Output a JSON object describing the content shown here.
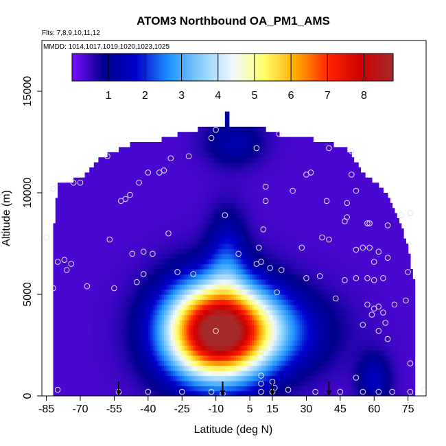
{
  "chart_data": {
    "type": "heatmap",
    "title": "ATOM3 Northbound OA_PM1_AMS",
    "flights_note": "Flts: 7,8,9,10,11,12",
    "dates_note": "MMDD: 1014,1017,1019,1020,1023,1025",
    "xlabel": "Latitude (deg N)",
    "ylabel": "Altitude (m)",
    "xlim": [
      -87,
      83
    ],
    "ylim": [
      0,
      17500
    ],
    "x_ticks": [
      -85,
      -70,
      -55,
      -40,
      -25,
      -10,
      5,
      15,
      30,
      45,
      60,
      75
    ],
    "y_ticks": [
      0,
      5000,
      10000,
      15000
    ],
    "colorbar": {
      "range": [
        0,
        8.8
      ],
      "ticks": [
        1,
        2,
        3,
        4,
        5,
        6,
        7,
        8
      ],
      "colors": [
        "#7a0dff",
        "#00008b",
        "#0000cd",
        "#1e90ff",
        "#87cefa",
        "#f0f8ff",
        "#ffff66",
        "#ffa500",
        "#ff2200",
        "#cc0000",
        "#a52a2a"
      ]
    },
    "envelope": [
      {
        "lat": -82,
        "top": 8000
      },
      {
        "lat": -80,
        "top": 10400
      },
      {
        "lat": -70,
        "top": 10700
      },
      {
        "lat": -60,
        "top": 11800
      },
      {
        "lat": -45,
        "top": 12500
      },
      {
        "lat": -35,
        "top": 12600
      },
      {
        "lat": -23,
        "top": 13000
      },
      {
        "lat": -12,
        "top": 13300
      },
      {
        "lat": 0,
        "top": 13300
      },
      {
        "lat": 10,
        "top": 13200
      },
      {
        "lat": 20,
        "top": 12800
      },
      {
        "lat": 35,
        "top": 12600
      },
      {
        "lat": 48,
        "top": 12200
      },
      {
        "lat": 55,
        "top": 11000
      },
      {
        "lat": 63,
        "top": 10300
      },
      {
        "lat": 67,
        "top": 9700
      },
      {
        "lat": 71,
        "top": 8700
      },
      {
        "lat": 75,
        "top": 7200
      },
      {
        "lat": 78,
        "top": 5400
      }
    ],
    "spike": {
      "lat_min": -6,
      "lat_max": -4,
      "top": 13800
    },
    "features": [
      {
        "lat": -10,
        "alt": 3200,
        "sigma_lat": 16,
        "sigma_alt": 1700,
        "value": 8.1
      },
      {
        "lat": 10,
        "alt": 3200,
        "sigma_lat": 20,
        "sigma_alt": 1400,
        "value": 2.0
      },
      {
        "lat": -5,
        "alt": 7000,
        "sigma_lat": 6,
        "sigma_alt": 1500,
        "value": 1.3
      },
      {
        "lat": 60,
        "alt": 800,
        "sigma_lat": 5,
        "sigma_alt": 900,
        "value": 1.2
      },
      {
        "lat": -2,
        "alt": 12500,
        "sigma_lat": 9,
        "sigma_alt": 800,
        "value": 1.0
      }
    ],
    "points": [
      {
        "lat": -10,
        "alt": 13100
      },
      {
        "lat": -12,
        "alt": 12700
      },
      {
        "lat": 8,
        "alt": 12200
      },
      {
        "lat": 18,
        "alt": 12900
      },
      {
        "lat": 40,
        "alt": 12200
      },
      {
        "lat": 50,
        "alt": 12050
      },
      {
        "lat": -58,
        "alt": 11800
      },
      {
        "lat": -30,
        "alt": 11700
      },
      {
        "lat": -22,
        "alt": 11800
      },
      {
        "lat": -40,
        "alt": 11000
      },
      {
        "lat": -35,
        "alt": 11000
      },
      {
        "lat": -33,
        "alt": 11100
      },
      {
        "lat": -70,
        "alt": 10500
      },
      {
        "lat": -73,
        "alt": 10500
      },
      {
        "lat": -82,
        "alt": 10200
      },
      {
        "lat": -44,
        "alt": 10500
      },
      {
        "lat": -48,
        "alt": 9900
      },
      {
        "lat": -50,
        "alt": 9700
      },
      {
        "lat": -52,
        "alt": 9600
      },
      {
        "lat": 12,
        "alt": 10300
      },
      {
        "lat": 12,
        "alt": 9600
      },
      {
        "lat": 30,
        "alt": 10900
      },
      {
        "lat": 32,
        "alt": 11000
      },
      {
        "lat": 50,
        "alt": 10900
      },
      {
        "lat": 24,
        "alt": 10100
      },
      {
        "lat": 39,
        "alt": 9600
      },
      {
        "lat": 48,
        "alt": 9500
      },
      {
        "lat": 52,
        "alt": 10100
      },
      {
        "lat": -6,
        "alt": 8900
      },
      {
        "lat": 48,
        "alt": 8800
      },
      {
        "lat": 47,
        "alt": 8600
      },
      {
        "lat": 57,
        "alt": 8500
      },
      {
        "lat": 58,
        "alt": 8500
      },
      {
        "lat": 66,
        "alt": 8400
      },
      {
        "lat": 72,
        "alt": 8900
      },
      {
        "lat": 76,
        "alt": 9000
      },
      {
        "lat": 11,
        "alt": 8200
      },
      {
        "lat": -85,
        "alt": 7800
      },
      {
        "lat": -57,
        "alt": 7700
      },
      {
        "lat": -31,
        "alt": 8000
      },
      {
        "lat": 37,
        "alt": 7800
      },
      {
        "lat": 40,
        "alt": 7700
      },
      {
        "lat": 9,
        "alt": 7300
      },
      {
        "lat": 28,
        "alt": 7300
      },
      {
        "lat": 52,
        "alt": 7200
      },
      {
        "lat": 55,
        "alt": 7300
      },
      {
        "lat": 58,
        "alt": 7300
      },
      {
        "lat": 62,
        "alt": 7100
      },
      {
        "lat": -47,
        "alt": 7000
      },
      {
        "lat": -42,
        "alt": 7100
      },
      {
        "lat": -38,
        "alt": 7000
      },
      {
        "lat": 0,
        "alt": 7000
      },
      {
        "lat": -77,
        "alt": 6700
      },
      {
        "lat": -80,
        "alt": 6600
      },
      {
        "lat": -76,
        "alt": 6200
      },
      {
        "lat": -74,
        "alt": 6500
      },
      {
        "lat": 8,
        "alt": 6500
      },
      {
        "lat": 10,
        "alt": 6600
      },
      {
        "lat": 60,
        "alt": 6600
      },
      {
        "lat": 66,
        "alt": 6800
      },
      {
        "lat": -27,
        "alt": 6100
      },
      {
        "lat": -20,
        "alt": 6000
      },
      {
        "lat": -42,
        "alt": 6000
      },
      {
        "lat": 14,
        "alt": 6300
      },
      {
        "lat": 19,
        "alt": 6200
      },
      {
        "lat": 30,
        "alt": 5800
      },
      {
        "lat": 36,
        "alt": 5900
      },
      {
        "lat": 47,
        "alt": 5700
      },
      {
        "lat": 52,
        "alt": 5800
      },
      {
        "lat": 57,
        "alt": 5800
      },
      {
        "lat": 60,
        "alt": 5700
      },
      {
        "lat": 64,
        "alt": 5800
      },
      {
        "lat": 75,
        "alt": 6100
      },
      {
        "lat": -45,
        "alt": 5600
      },
      {
        "lat": -67,
        "alt": 5400
      },
      {
        "lat": -82,
        "alt": 5300
      },
      {
        "lat": -55,
        "alt": 5300
      },
      {
        "lat": 0,
        "alt": 5200
      },
      {
        "lat": 17,
        "alt": 5100
      },
      {
        "lat": 43,
        "alt": 4800
      },
      {
        "lat": 57,
        "alt": 4500
      },
      {
        "lat": 60,
        "alt": 4300
      },
      {
        "lat": 62,
        "alt": 4400
      },
      {
        "lat": 69,
        "alt": 4500
      },
      {
        "lat": 74,
        "alt": 4700
      },
      {
        "lat": 59,
        "alt": 4000
      },
      {
        "lat": 64,
        "alt": 4100
      },
      {
        "lat": 13,
        "alt": 4100
      },
      {
        "lat": 65,
        "alt": 3600
      },
      {
        "lat": 55,
        "alt": 3500
      },
      {
        "lat": -10,
        "alt": 3200
      },
      {
        "lat": 62,
        "alt": 3200
      },
      {
        "lat": 66,
        "alt": 2800
      },
      {
        "lat": 10,
        "alt": 2200
      },
      {
        "lat": 76,
        "alt": 1600
      },
      {
        "lat": 52,
        "alt": 900
      },
      {
        "lat": 10,
        "alt": 1000
      },
      {
        "lat": 15,
        "alt": 700
      },
      {
        "lat": 10,
        "alt": 600
      },
      {
        "lat": 15,
        "alt": 200
      },
      {
        "lat": -80,
        "alt": 300
      },
      {
        "lat": -53,
        "alt": 200
      },
      {
        "lat": -40,
        "alt": 200
      },
      {
        "lat": -25,
        "alt": 200
      },
      {
        "lat": -12,
        "alt": 200
      },
      {
        "lat": -7,
        "alt": 100
      },
      {
        "lat": 10,
        "alt": 200
      },
      {
        "lat": 16,
        "alt": 400
      },
      {
        "lat": 22,
        "alt": 300
      },
      {
        "lat": 34,
        "alt": 200
      },
      {
        "lat": 45,
        "alt": 200
      },
      {
        "lat": 55,
        "alt": 200
      },
      {
        "lat": 62,
        "alt": 200
      },
      {
        "lat": 68,
        "alt": 200
      },
      {
        "lat": 76,
        "alt": 200
      },
      {
        "lat": 82,
        "alt": 300
      }
    ],
    "arrows": [
      -53,
      -7,
      15,
      40
    ]
  }
}
